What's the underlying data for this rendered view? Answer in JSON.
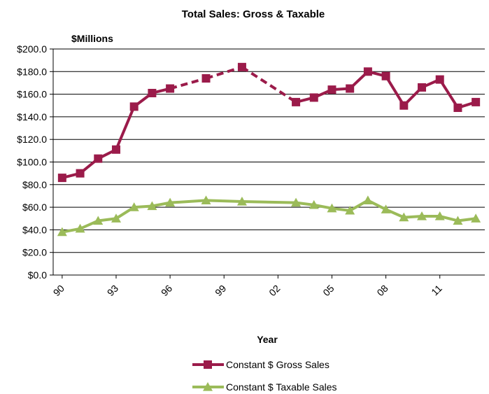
{
  "chart_data": {
    "type": "line",
    "title": "Total Sales: Gross & Taxable",
    "y_unit_label": "$Millions",
    "xlabel": "Year",
    "ylabel": "",
    "ylim": [
      0,
      200
    ],
    "yticks": [
      "$0.0",
      "$20.0",
      "$40.0",
      "$60.0",
      "$80.0",
      "$100.0",
      "$120.0",
      "$140.0",
      "$160.0",
      "$180.0",
      "$200.0"
    ],
    "xlim": [
      1990,
      2013
    ],
    "xticks": [
      {
        "year": 1990,
        "label": "90"
      },
      {
        "year": 1993,
        "label": "93"
      },
      {
        "year": 1996,
        "label": "96"
      },
      {
        "year": 1999,
        "label": "99"
      },
      {
        "year": 2002,
        "label": "02"
      },
      {
        "year": 2005,
        "label": "05"
      },
      {
        "year": 2008,
        "label": "08"
      },
      {
        "year": 2011,
        "label": "11"
      }
    ],
    "grid": "horizontal",
    "legend_position": "bottom",
    "series": [
      {
        "name": "Constant $ Gross Sales",
        "color": "#9B1B4A",
        "marker": "square",
        "dashed_ranges": [
          [
            1996,
            1998
          ],
          [
            1998,
            2000
          ],
          [
            2000,
            2003
          ]
        ],
        "points": [
          [
            1990,
            86
          ],
          [
            1991,
            90
          ],
          [
            1992,
            103
          ],
          [
            1993,
            111
          ],
          [
            1994,
            149
          ],
          [
            1995,
            161
          ],
          [
            1996,
            165
          ],
          [
            1998,
            174
          ],
          [
            2000,
            184
          ],
          [
            2003,
            153
          ],
          [
            2004,
            157
          ],
          [
            2005,
            164
          ],
          [
            2006,
            165
          ],
          [
            2007,
            180
          ],
          [
            2008,
            176
          ],
          [
            2009,
            150
          ],
          [
            2010,
            166
          ],
          [
            2011,
            173
          ],
          [
            2012,
            148
          ],
          [
            2013,
            153
          ]
        ]
      },
      {
        "name": "Constant $ Taxable Sales",
        "color": "#9BBB59",
        "marker": "triangle",
        "dashed_ranges": [],
        "points": [
          [
            1990,
            38
          ],
          [
            1991,
            41
          ],
          [
            1992,
            48
          ],
          [
            1993,
            50
          ],
          [
            1994,
            60
          ],
          [
            1995,
            61
          ],
          [
            1996,
            64
          ],
          [
            1998,
            66
          ],
          [
            2000,
            65
          ],
          [
            2003,
            64
          ],
          [
            2004,
            62
          ],
          [
            2005,
            59
          ],
          [
            2006,
            57
          ],
          [
            2007,
            66
          ],
          [
            2008,
            58
          ],
          [
            2009,
            51
          ],
          [
            2010,
            52
          ],
          [
            2011,
            52
          ],
          [
            2012,
            48
          ],
          [
            2013,
            50
          ]
        ]
      }
    ]
  }
}
